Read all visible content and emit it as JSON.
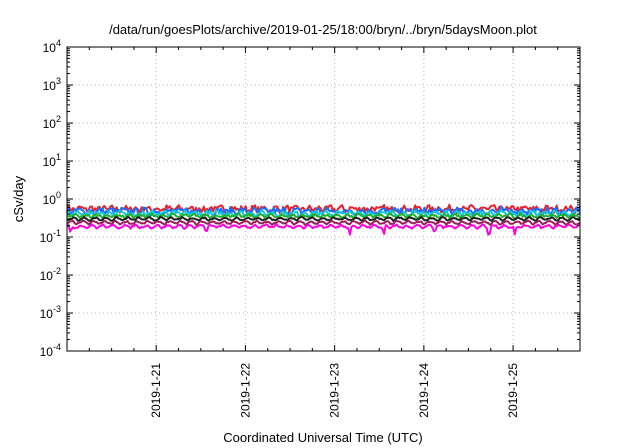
{
  "chart_data": {
    "type": "line",
    "title": "/data/run/goesPlots/archive/2019-01-25/18:00/bryn/../bryn/5daysMoon.plot",
    "xlabel": "Coordinated Universal Time (UTC)",
    "ylabel": "cSv/day",
    "y_scale": "log",
    "ylim": [
      0.0001,
      10000
    ],
    "y_ticks": [
      {
        "base": "10",
        "exp": "4"
      },
      {
        "base": "10",
        "exp": "3"
      },
      {
        "base": "10",
        "exp": "2"
      },
      {
        "base": "10",
        "exp": "1"
      },
      {
        "base": "10",
        "exp": "0"
      },
      {
        "base": "10",
        "exp": "-1"
      },
      {
        "base": "10",
        "exp": "-2"
      },
      {
        "base": "10",
        "exp": "-3"
      },
      {
        "base": "10",
        "exp": "-4"
      }
    ],
    "x_range_days": [
      "2019-01-20",
      "2019-01-25"
    ],
    "x_ticks": [
      "2019-1-21",
      "2019-1-22",
      "2019-1-23",
      "2019-1-24",
      "2019-1-25"
    ],
    "grid": true,
    "series": [
      {
        "color": "#e8202a",
        "level": 0.55,
        "amp": 0.2,
        "dips": []
      },
      {
        "color": "#1a6fff",
        "level": 0.48,
        "amp": 0.2,
        "dips": []
      },
      {
        "color": "#18c8d8",
        "level": 0.42,
        "amp": 0.12,
        "dips": []
      },
      {
        "color": "#20b030",
        "level": 0.36,
        "amp": 0.08,
        "dips": []
      },
      {
        "color": "#202020",
        "level": 0.3,
        "amp": 0.05,
        "dips": []
      },
      {
        "color": "#9a1e5a",
        "level": 0.24,
        "amp": 0.05,
        "dips": []
      },
      {
        "color": "#ff00e0",
        "level": 0.19,
        "amp": 0.06,
        "dips": [
          {
            "t": 0.04,
            "v": 0.12
          },
          {
            "t": 1.56,
            "v": 0.11
          },
          {
            "t": 3.17,
            "v": 0.11
          },
          {
            "t": 3.55,
            "v": 0.1
          },
          {
            "t": 4.12,
            "v": 0.11
          },
          {
            "t": 4.73,
            "v": 0.065
          },
          {
            "t": 5.02,
            "v": 0.11
          }
        ]
      }
    ]
  }
}
